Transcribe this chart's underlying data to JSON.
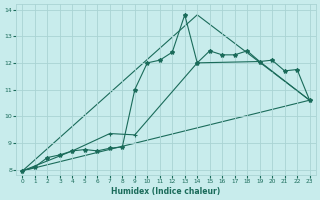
{
  "xlabel": "Humidex (Indice chaleur)",
  "bg_color": "#c8ecec",
  "grid_color": "#aad4d4",
  "line_color": "#1a6b5a",
  "xlim": [
    -0.5,
    23.5
  ],
  "ylim": [
    7.8,
    14.2
  ],
  "xticks": [
    0,
    1,
    2,
    3,
    4,
    5,
    6,
    7,
    8,
    9,
    10,
    11,
    12,
    13,
    14,
    15,
    16,
    17,
    18,
    19,
    20,
    21,
    22,
    23
  ],
  "yticks": [
    8,
    9,
    10,
    11,
    12,
    13,
    14
  ],
  "line1_x": [
    0,
    1,
    2,
    3,
    4,
    5,
    6,
    7,
    8,
    9,
    10,
    11,
    12,
    13,
    14,
    15,
    16,
    17,
    18,
    19,
    20,
    21,
    22,
    23
  ],
  "line1_y": [
    7.95,
    8.1,
    8.45,
    8.55,
    8.7,
    8.75,
    8.7,
    8.8,
    8.85,
    11.0,
    12.0,
    12.1,
    12.4,
    13.8,
    12.0,
    12.45,
    12.3,
    12.3,
    12.45,
    12.05,
    12.1,
    11.7,
    11.75,
    10.6
  ],
  "line2_x": [
    0,
    4,
    7,
    9,
    14,
    19,
    23
  ],
  "line2_y": [
    7.95,
    8.7,
    9.35,
    9.3,
    12.0,
    12.05,
    10.6
  ],
  "line3_x": [
    0,
    23
  ],
  "line3_y": [
    7.95,
    10.6
  ],
  "line4_x": [
    0,
    14,
    23
  ],
  "line4_y": [
    7.95,
    13.8,
    10.6
  ]
}
